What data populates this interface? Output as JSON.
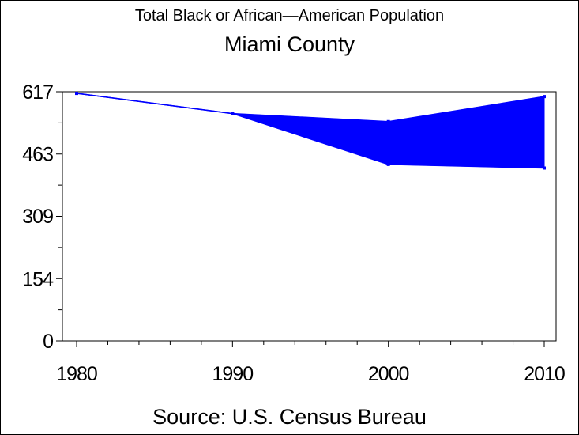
{
  "header": {
    "title": "Total Black or African—American Population",
    "subtitle": "Miami County"
  },
  "footer": {
    "source": "Source: U.S. Census Bureau"
  },
  "chart_data": {
    "type": "area",
    "title": "Total Black or African—American Population",
    "subtitle": "Miami County",
    "categories": [
      "1980",
      "1990",
      "2000",
      "2010"
    ],
    "x": [
      1980,
      1990,
      2000,
      2010
    ],
    "series": [
      {
        "values": [
          613,
          563,
          543,
          605
        ]
      },
      {
        "values": [
          613,
          563,
          437,
          428
        ]
      }
    ],
    "yticks": [
      0,
      154,
      309,
      463,
      617
    ],
    "xticks": [
      1980,
      1990,
      2000,
      2010
    ],
    "ylim": [
      0,
      617
    ],
    "xlim": [
      1980,
      2010
    ],
    "grid": false,
    "colors": {
      "fill": "#0000ff",
      "line": "#0000ff",
      "axis": "#000000"
    }
  }
}
